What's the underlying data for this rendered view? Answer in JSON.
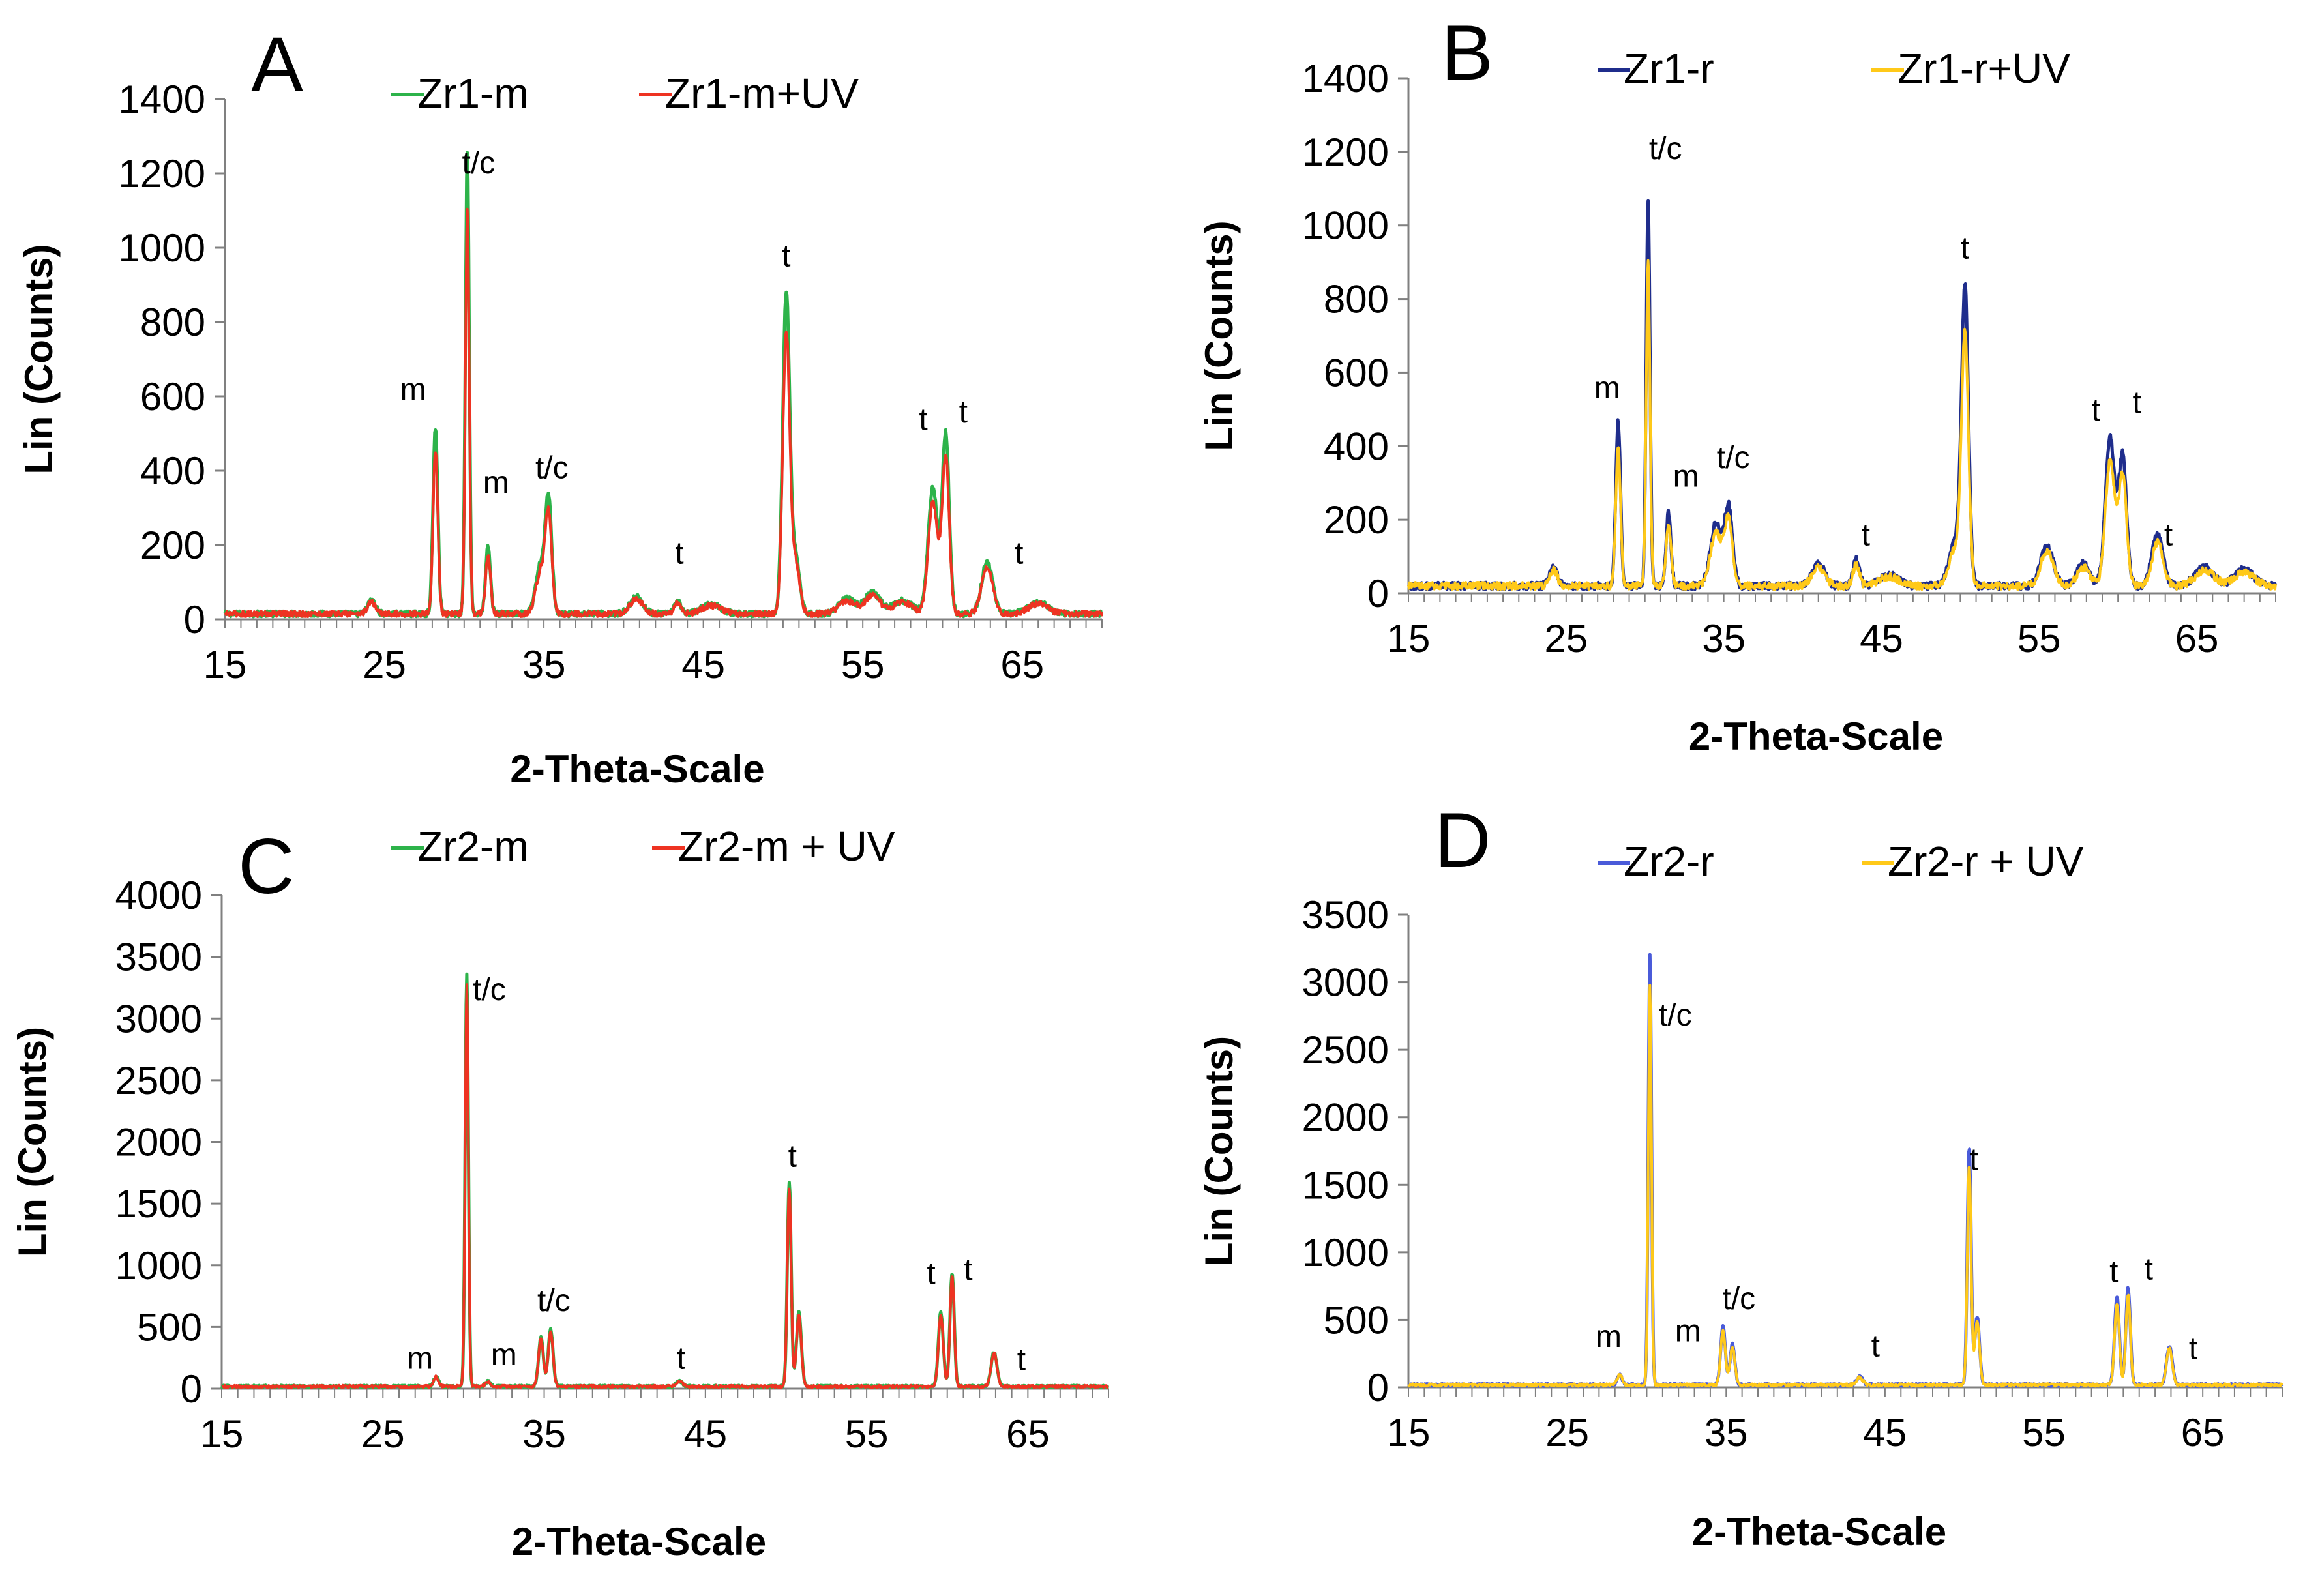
{
  "chart_data": [
    {
      "type": "line",
      "panel": "A",
      "xlabel": "2-Theta-Scale",
      "ylabel": "Lin (Counts)",
      "xlim": [
        15,
        70
      ],
      "ylim": [
        0,
        1400
      ],
      "xticks": [
        15,
        25,
        35,
        45,
        55,
        65
      ],
      "yticks": [
        0,
        200,
        400,
        600,
        800,
        1000,
        1200,
        1400
      ],
      "base": 15,
      "noise": 8,
      "peaks": [
        [
          24.2,
          35,
          0.25
        ],
        [
          28.2,
          500,
          0.15
        ],
        [
          30.2,
          1240,
          0.12
        ],
        [
          31.5,
          180,
          0.15
        ],
        [
          34.8,
          130,
          0.3
        ],
        [
          35.3,
          290,
          0.2
        ],
        [
          40.8,
          45,
          0.4
        ],
        [
          43.4,
          35,
          0.2
        ],
        [
          45.5,
          25,
          0.6
        ],
        [
          50.2,
          860,
          0.22
        ],
        [
          50.8,
          150,
          0.25
        ],
        [
          54.0,
          40,
          0.5
        ],
        [
          55.6,
          55,
          0.5
        ],
        [
          57.5,
          35,
          0.6
        ],
        [
          59.4,
          340,
          0.3
        ],
        [
          60.2,
          480,
          0.22
        ],
        [
          62.8,
          140,
          0.35
        ],
        [
          66.0,
          30,
          0.6
        ]
      ],
      "series": [
        {
          "name": "Zr1-m",
          "color": "#2db34a",
          "scale": 1.0
        },
        {
          "name": "Zr1-m+UV",
          "color": "#ee3322",
          "scale": 0.88
        }
      ],
      "peak_labels": [
        {
          "text": "t/c",
          "x": 30.9,
          "y": 1200
        },
        {
          "text": "m",
          "x": 26.8,
          "y": 590
        },
        {
          "text": "m",
          "x": 32.0,
          "y": 340
        },
        {
          "text": "t/c",
          "x": 35.5,
          "y": 380
        },
        {
          "text": "t",
          "x": 43.5,
          "y": 150
        },
        {
          "text": "t",
          "x": 50.2,
          "y": 950
        },
        {
          "text": "t",
          "x": 58.8,
          "y": 510
        },
        {
          "text": "t",
          "x": 61.3,
          "y": 530
        },
        {
          "text": "t",
          "x": 64.8,
          "y": 150
        }
      ]
    },
    {
      "type": "line",
      "panel": "B",
      "xlabel": "2-Theta-Scale",
      "ylabel": "Lin (Counts)",
      "xlim": [
        15,
        70
      ],
      "ylim": [
        0,
        1400
      ],
      "xticks": [
        15,
        25,
        35,
        45,
        55,
        65
      ],
      "yticks": [
        0,
        200,
        400,
        600,
        800,
        1000,
        1200,
        1400
      ],
      "base": 20,
      "noise": 10,
      "peaks": [
        [
          24.2,
          50,
          0.25
        ],
        [
          28.3,
          450,
          0.15
        ],
        [
          30.2,
          1050,
          0.12
        ],
        [
          31.5,
          200,
          0.15
        ],
        [
          34.5,
          170,
          0.35
        ],
        [
          35.3,
          210,
          0.25
        ],
        [
          41.0,
          60,
          0.4
        ],
        [
          43.4,
          70,
          0.2
        ],
        [
          45.5,
          30,
          0.6
        ],
        [
          49.7,
          120,
          0.4
        ],
        [
          50.3,
          780,
          0.22
        ],
        [
          55.5,
          110,
          0.4
        ],
        [
          57.8,
          60,
          0.4
        ],
        [
          59.5,
          400,
          0.3
        ],
        [
          60.3,
          350,
          0.25
        ],
        [
          62.5,
          140,
          0.35
        ],
        [
          65.5,
          50,
          0.6
        ],
        [
          68.0,
          45,
          0.6
        ]
      ],
      "series": [
        {
          "name": "Zr1-r",
          "color": "#1f2d8c",
          "scale": 1.0
        },
        {
          "name": "Zr1-r+UV",
          "color": "#ffc919",
          "scale": 0.85
        }
      ],
      "peak_labels": [
        {
          "text": "t/c",
          "x": 31.3,
          "y": 1180
        },
        {
          "text": "m",
          "x": 27.6,
          "y": 530
        },
        {
          "text": "m",
          "x": 32.6,
          "y": 290
        },
        {
          "text": "t/c",
          "x": 35.6,
          "y": 340
        },
        {
          "text": "t",
          "x": 44.0,
          "y": 130
        },
        {
          "text": "t",
          "x": 50.3,
          "y": 910
        },
        {
          "text": "t",
          "x": 58.6,
          "y": 470
        },
        {
          "text": "t",
          "x": 61.2,
          "y": 490
        },
        {
          "text": "t",
          "x": 63.2,
          "y": 130
        }
      ]
    },
    {
      "type": "line",
      "panel": "C",
      "xlabel": "2-Theta-Scale",
      "ylabel": "Lin (Counts)",
      "xlim": [
        15,
        70
      ],
      "ylim": [
        0,
        4000
      ],
      "xticks": [
        15,
        25,
        35,
        45,
        55,
        65
      ],
      "yticks": [
        0,
        500,
        1000,
        1500,
        2000,
        2500,
        3000,
        3500,
        4000
      ],
      "base": 18,
      "noise": 10,
      "peaks": [
        [
          28.3,
          80,
          0.15
        ],
        [
          30.2,
          3350,
          0.1
        ],
        [
          31.5,
          40,
          0.15
        ],
        [
          34.8,
          400,
          0.15
        ],
        [
          35.4,
          460,
          0.15
        ],
        [
          43.4,
          40,
          0.2
        ],
        [
          50.2,
          1650,
          0.12
        ],
        [
          50.8,
          600,
          0.15
        ],
        [
          59.6,
          600,
          0.15
        ],
        [
          60.3,
          920,
          0.13
        ],
        [
          62.9,
          280,
          0.18
        ]
      ],
      "series": [
        {
          "name": "Zr2-m",
          "color": "#2db34a",
          "scale": 1.0
        },
        {
          "name": "Zr2-m + UV",
          "color": "#ee3322",
          "scale": 0.97
        }
      ],
      "peak_labels": [
        {
          "text": "t/c",
          "x": 31.6,
          "y": 3150
        },
        {
          "text": "m",
          "x": 27.3,
          "y": 160
        },
        {
          "text": "m",
          "x": 32.5,
          "y": 190
        },
        {
          "text": "t/c",
          "x": 35.6,
          "y": 630
        },
        {
          "text": "t",
          "x": 43.5,
          "y": 160
        },
        {
          "text": "t",
          "x": 50.4,
          "y": 1800
        },
        {
          "text": "t",
          "x": 59.0,
          "y": 850
        },
        {
          "text": "t",
          "x": 61.3,
          "y": 880
        },
        {
          "text": "t",
          "x": 64.6,
          "y": 150
        }
      ]
    },
    {
      "type": "line",
      "panel": "D",
      "xlabel": "2-Theta-Scale",
      "ylabel": "Lin (Counts)",
      "xlim": [
        15,
        70
      ],
      "ylim": [
        0,
        3500
      ],
      "xticks": [
        15,
        25,
        35,
        45,
        55,
        65
      ],
      "yticks": [
        0,
        500,
        1000,
        1500,
        2000,
        2500,
        3000,
        3500
      ],
      "base": 18,
      "noise": 10,
      "peaks": [
        [
          28.3,
          80,
          0.15
        ],
        [
          30.2,
          3180,
          0.1
        ],
        [
          34.8,
          430,
          0.15
        ],
        [
          35.4,
          300,
          0.15
        ],
        [
          43.4,
          60,
          0.2
        ],
        [
          50.3,
          1760,
          0.12
        ],
        [
          50.8,
          500,
          0.15
        ],
        [
          59.6,
          650,
          0.15
        ],
        [
          60.3,
          720,
          0.14
        ],
        [
          62.9,
          290,
          0.18
        ]
      ],
      "series": [
        {
          "name": "Zr2-r",
          "color": "#4a5bd9",
          "scale": 1.0
        },
        {
          "name": "Zr2-r + UV",
          "color": "#ffc919",
          "scale": 0.93
        }
      ],
      "peak_labels": [
        {
          "text": "t/c",
          "x": 31.8,
          "y": 2680
        },
        {
          "text": "m",
          "x": 27.6,
          "y": 300
        },
        {
          "text": "m",
          "x": 32.6,
          "y": 340
        },
        {
          "text": "t/c",
          "x": 35.8,
          "y": 580
        },
        {
          "text": "t",
          "x": 44.4,
          "y": 230
        },
        {
          "text": "t",
          "x": 50.6,
          "y": 1610
        },
        {
          "text": "t",
          "x": 59.4,
          "y": 780
        },
        {
          "text": "t",
          "x": 61.6,
          "y": 800
        },
        {
          "text": "t",
          "x": 64.4,
          "y": 210
        }
      ]
    }
  ]
}
